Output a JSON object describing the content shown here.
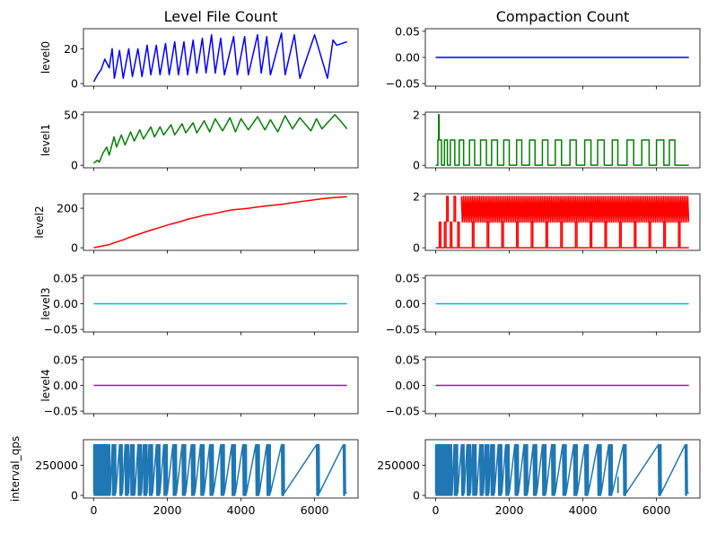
{
  "chart_data": {
    "type": "line",
    "column_titles": [
      "Level File Count",
      "Compaction Count"
    ],
    "row_labels": [
      "level0",
      "level1",
      "level2",
      "level3",
      "level4",
      "interval_qps"
    ],
    "xlim": [
      -280,
      7180
    ],
    "xticks": [
      0,
      2000,
      4000,
      6000
    ],
    "xtick_labels": [
      "0",
      "2000",
      "4000",
      "6000"
    ],
    "panels": [
      {
        "row": 0,
        "col": 0,
        "color": "#0000ff",
        "kind": "sawtooth",
        "ylim": [
          -1.5,
          31.5
        ],
        "yticks": [
          0,
          20
        ],
        "ytick_labels": [
          "0",
          "20"
        ],
        "x_range": [
          0,
          6880
        ],
        "points": [
          [
            0,
            1
          ],
          [
            100,
            5
          ],
          [
            200,
            8
          ],
          [
            300,
            14
          ],
          [
            420,
            9
          ],
          [
            500,
            20
          ],
          [
            560,
            3
          ],
          [
            700,
            19
          ],
          [
            800,
            3
          ],
          [
            950,
            20
          ],
          [
            1050,
            4
          ],
          [
            1200,
            20
          ],
          [
            1310,
            4
          ],
          [
            1450,
            22
          ],
          [
            1550,
            5
          ],
          [
            1700,
            22
          ],
          [
            1800,
            5
          ],
          [
            1950,
            23
          ],
          [
            2050,
            5
          ],
          [
            2200,
            24
          ],
          [
            2300,
            5
          ],
          [
            2450,
            24
          ],
          [
            2550,
            5
          ],
          [
            2700,
            25
          ],
          [
            2800,
            6
          ],
          [
            2950,
            26
          ],
          [
            3050,
            6
          ],
          [
            3200,
            28
          ],
          [
            3300,
            6
          ],
          [
            3450,
            26
          ],
          [
            3550,
            5
          ],
          [
            3800,
            27
          ],
          [
            3900,
            5
          ],
          [
            4100,
            27
          ],
          [
            4200,
            5
          ],
          [
            4450,
            28
          ],
          [
            4550,
            6
          ],
          [
            4700,
            27
          ],
          [
            4800,
            5
          ],
          [
            5100,
            29
          ],
          [
            5200,
            5
          ],
          [
            5450,
            28
          ],
          [
            5600,
            3
          ],
          [
            6000,
            28
          ],
          [
            6350,
            3
          ],
          [
            6500,
            25
          ],
          [
            6600,
            22
          ],
          [
            6880,
            24
          ]
        ]
      },
      {
        "row": 0,
        "col": 1,
        "color": "#0000ff",
        "kind": "flat",
        "ylim": [
          -0.055,
          0.055
        ],
        "yticks": [
          0.05,
          0.0,
          -0.05
        ],
        "ytick_labels": [
          "0.05",
          "0.00",
          "−0.05"
        ],
        "x_range": [
          0,
          6880
        ],
        "value": 0
      },
      {
        "row": 1,
        "col": 0,
        "color": "#008000",
        "kind": "sawtooth",
        "ylim": [
          -2.5,
          52.5
        ],
        "yticks": [
          0,
          50
        ],
        "ytick_labels": [
          "0",
          "50"
        ],
        "x_range": [
          0,
          6880
        ],
        "points": [
          [
            0,
            2
          ],
          [
            100,
            5
          ],
          [
            150,
            3
          ],
          [
            250,
            12
          ],
          [
            350,
            18
          ],
          [
            420,
            10
          ],
          [
            550,
            28
          ],
          [
            620,
            18
          ],
          [
            750,
            30
          ],
          [
            850,
            20
          ],
          [
            1000,
            33
          ],
          [
            1100,
            24
          ],
          [
            1250,
            35
          ],
          [
            1350,
            26
          ],
          [
            1550,
            38
          ],
          [
            1650,
            28
          ],
          [
            1800,
            38
          ],
          [
            1900,
            30
          ],
          [
            2100,
            40
          ],
          [
            2200,
            30
          ],
          [
            2400,
            41
          ],
          [
            2500,
            32
          ],
          [
            2700,
            42
          ],
          [
            2800,
            32
          ],
          [
            3000,
            44
          ],
          [
            3150,
            33
          ],
          [
            3300,
            46
          ],
          [
            3500,
            34
          ],
          [
            3700,
            47
          ],
          [
            3850,
            33
          ],
          [
            4000,
            46
          ],
          [
            4200,
            35
          ],
          [
            4450,
            48
          ],
          [
            4650,
            35
          ],
          [
            4800,
            45
          ],
          [
            5000,
            33
          ],
          [
            5200,
            49
          ],
          [
            5400,
            36
          ],
          [
            5600,
            47
          ],
          [
            5900,
            34
          ],
          [
            6050,
            46
          ],
          [
            6200,
            36
          ],
          [
            6550,
            50
          ],
          [
            6700,
            44
          ],
          [
            6880,
            36
          ]
        ]
      },
      {
        "row": 1,
        "col": 1,
        "color": "#008000",
        "kind": "square",
        "ylim": [
          -0.1,
          2.1
        ],
        "yticks": [
          0,
          2
        ],
        "ytick_labels": [
          "0",
          "2"
        ],
        "x_range": [
          0,
          6880
        ],
        "base": 0,
        "high": 1,
        "pulses": [
          [
            60,
            160
          ],
          [
            240,
            320
          ],
          [
            400,
            520
          ],
          [
            640,
            760
          ],
          [
            920,
            1060
          ],
          [
            1220,
            1380
          ],
          [
            1520,
            1680
          ],
          [
            1850,
            2000
          ],
          [
            2200,
            2340
          ],
          [
            2550,
            2700
          ],
          [
            2900,
            3050
          ],
          [
            3250,
            3420
          ],
          [
            3650,
            3820
          ],
          [
            4050,
            4220
          ],
          [
            4400,
            4580
          ],
          [
            4800,
            4950
          ],
          [
            5200,
            5380
          ],
          [
            5600,
            5800
          ],
          [
            6000,
            6200
          ],
          [
            6350,
            6500
          ]
        ],
        "spikes": [
          [
            80,
            2
          ]
        ]
      },
      {
        "row": 2,
        "col": 0,
        "color": "#ff0000",
        "kind": "line",
        "ylim": [
          -13,
          273
        ],
        "yticks": [
          0,
          200
        ],
        "ytick_labels": [
          "0",
          "200"
        ],
        "x_range": [
          0,
          6880
        ],
        "points": [
          [
            0,
            0
          ],
          [
            200,
            8
          ],
          [
            400,
            15
          ],
          [
            600,
            28
          ],
          [
            800,
            40
          ],
          [
            1000,
            55
          ],
          [
            1200,
            67
          ],
          [
            1400,
            80
          ],
          [
            1600,
            92
          ],
          [
            1800,
            103
          ],
          [
            2000,
            115
          ],
          [
            2200,
            125
          ],
          [
            2400,
            135
          ],
          [
            2600,
            147
          ],
          [
            2800,
            155
          ],
          [
            3000,
            165
          ],
          [
            3200,
            170
          ],
          [
            3400,
            178
          ],
          [
            3600,
            186
          ],
          [
            3800,
            193
          ],
          [
            4000,
            196
          ],
          [
            4200,
            200
          ],
          [
            4400,
            205
          ],
          [
            4600,
            210
          ],
          [
            4800,
            214
          ],
          [
            5000,
            218
          ],
          [
            5200,
            222
          ],
          [
            5400,
            228
          ],
          [
            5600,
            233
          ],
          [
            5800,
            238
          ],
          [
            6000,
            243
          ],
          [
            6200,
            248
          ],
          [
            6400,
            252
          ],
          [
            6600,
            255
          ],
          [
            6880,
            258
          ]
        ]
      },
      {
        "row": 2,
        "col": 1,
        "color": "#ff0000",
        "kind": "square_dense",
        "ylim": [
          -0.1,
          2.1
        ],
        "yticks": [
          0,
          2
        ],
        "ytick_labels": [
          "0",
          "2"
        ],
        "x_range": [
          0,
          6880
        ],
        "base": 0,
        "mid": 1,
        "high": 2,
        "low_pulses": [
          [
            100,
            140
          ],
          [
            240,
            280
          ],
          [
            400,
            440
          ],
          [
            600,
            640
          ],
          [
            1000,
            1040
          ],
          [
            1400,
            1440
          ],
          [
            1800,
            1840
          ],
          [
            2200,
            2240
          ],
          [
            2600,
            2640
          ],
          [
            3000,
            3040
          ],
          [
            3400,
            3440
          ],
          [
            3800,
            3840
          ],
          [
            4200,
            4240
          ],
          [
            4600,
            4640
          ],
          [
            5000,
            5040
          ],
          [
            5400,
            5440
          ],
          [
            5800,
            5840
          ],
          [
            6200,
            6240
          ],
          [
            6600,
            6640
          ]
        ],
        "dense_from": 700,
        "dense_to": 6880
      },
      {
        "row": 3,
        "col": 0,
        "color": "#00bfbf",
        "kind": "flat",
        "ylim": [
          -0.055,
          0.055
        ],
        "yticks": [
          0.05,
          0.0,
          -0.05
        ],
        "ytick_labels": [
          "0.05",
          "0.00",
          "−0.05"
        ],
        "x_range": [
          0,
          6880
        ],
        "value": 0
      },
      {
        "row": 3,
        "col": 1,
        "color": "#00bfbf",
        "kind": "flat",
        "ylim": [
          -0.055,
          0.055
        ],
        "yticks": [
          0.05,
          0.0,
          -0.05
        ],
        "ytick_labels": [
          "0.05",
          "0.00",
          "−0.05"
        ],
        "x_range": [
          0,
          6880
        ],
        "value": 0
      },
      {
        "row": 4,
        "col": 0,
        "color": "#bf00bf",
        "kind": "flat",
        "ylim": [
          -0.055,
          0.055
        ],
        "yticks": [
          0.05,
          0.0,
          -0.05
        ],
        "ytick_labels": [
          "0.05",
          "0.00",
          "−0.05"
        ],
        "x_range": [
          0,
          6880
        ],
        "value": 0
      },
      {
        "row": 4,
        "col": 1,
        "color": "#bf00bf",
        "kind": "flat",
        "ylim": [
          -0.055,
          0.055
        ],
        "yticks": [
          0.05,
          0.0,
          -0.05
        ],
        "ytick_labels": [
          "0.05",
          "0.00",
          "−0.05"
        ],
        "x_range": [
          0,
          6880
        ],
        "value": 0
      },
      {
        "row": 5,
        "col": 0,
        "color": "#1f77b4",
        "kind": "bursts",
        "ylim": [
          -22000,
          462000
        ],
        "yticks": [
          0,
          250000
        ],
        "ytick_labels": [
          "0",
          "250000"
        ],
        "x_range": [
          0,
          6880
        ],
        "baseline": 20000,
        "peak": 420000,
        "bursts": [
          [
            0,
            450
          ],
          [
            500,
            600
          ],
          [
            700,
            780
          ],
          [
            850,
            950
          ],
          [
            1000,
            1120
          ],
          [
            1200,
            1300
          ],
          [
            1350,
            1450
          ],
          [
            1500,
            1600
          ],
          [
            1700,
            1800
          ],
          [
            1900,
            2000
          ],
          [
            2150,
            2250
          ],
          [
            2400,
            2500
          ],
          [
            2650,
            2750
          ],
          [
            2900,
            3000
          ],
          [
            3150,
            3250
          ],
          [
            3450,
            3550
          ],
          [
            3750,
            3850
          ],
          [
            4050,
            4150
          ],
          [
            4400,
            4500
          ],
          [
            4700,
            4800
          ],
          [
            5100,
            5180
          ],
          [
            6050,
            6130
          ],
          [
            6780,
            6840
          ]
        ]
      },
      {
        "row": 5,
        "col": 1,
        "color": "#1f77b4",
        "kind": "bursts",
        "ylim": [
          -22000,
          462000
        ],
        "yticks": [
          0,
          250000
        ],
        "ytick_labels": [
          "0",
          "250000"
        ],
        "x_range": [
          0,
          6880
        ],
        "baseline": 20000,
        "peak": 420000,
        "bursts": [
          [
            0,
            450
          ],
          [
            500,
            600
          ],
          [
            700,
            780
          ],
          [
            850,
            950
          ],
          [
            1000,
            1120
          ],
          [
            1200,
            1300
          ],
          [
            1350,
            1450
          ],
          [
            1500,
            1600
          ],
          [
            1700,
            1800
          ],
          [
            1900,
            2000
          ],
          [
            2150,
            2250
          ],
          [
            2400,
            2500
          ],
          [
            2650,
            2750
          ],
          [
            2900,
            3000
          ],
          [
            3150,
            3250
          ],
          [
            3450,
            3550
          ],
          [
            3750,
            3850
          ],
          [
            4050,
            4150
          ],
          [
            4400,
            4500
          ],
          [
            4700,
            4800
          ],
          [
            5100,
            5180
          ],
          [
            6050,
            6130
          ],
          [
            6780,
            6840
          ]
        ],
        "extra_spike": [
          4950,
          150000
        ]
      }
    ]
  }
}
